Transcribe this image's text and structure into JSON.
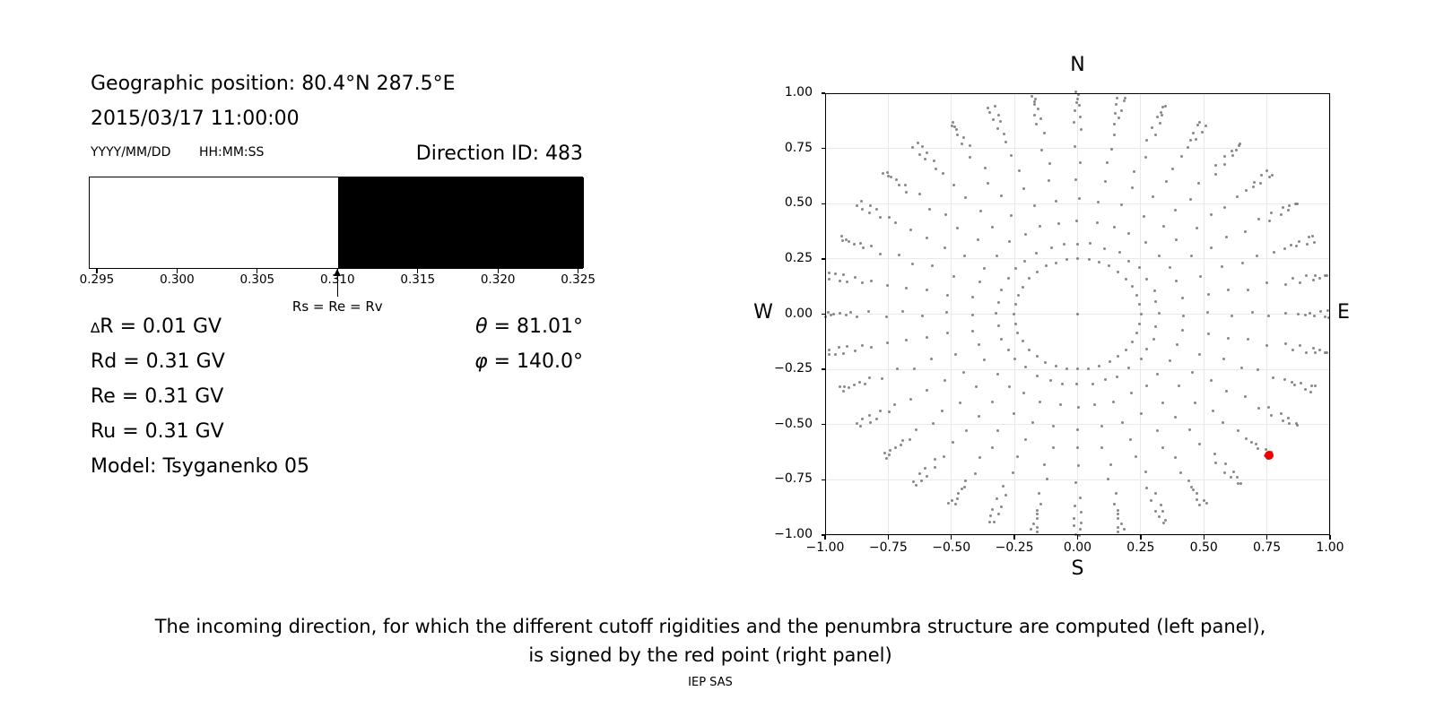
{
  "colors": {
    "dot_gray": "rgba(105,105,105,0.8)",
    "red_point": "#f00000",
    "grid": "#e9e9e9",
    "axis": "#000000",
    "penumbra_allowed": "#ffffff",
    "penumbra_forbidden": "#000000"
  },
  "left_panel": {
    "geo_position": "Geographic position: 80.4°N 287.5°E",
    "datetime": "2015/03/17 11:00:00",
    "date_format": "YYYY/MM/DD",
    "time_format": "HH:MM:SS",
    "direction_id": "Direction ID: 483",
    "info_rows": [
      {
        "sym": "∆",
        "text": "R = 0.01 GV"
      },
      {
        "sym": "",
        "text": "Rd = 0.31 GV"
      },
      {
        "sym": "",
        "text": "Re = 0.31 GV"
      },
      {
        "sym": "",
        "text": "Ru = 0.31 GV"
      },
      {
        "sym": "",
        "text": "Model: Tsyganenko 05"
      }
    ],
    "angle_rows": [
      {
        "sym": "θ",
        "text": " = 81.01°"
      },
      {
        "sym": "φ",
        "text": " = 140.0°"
      }
    ]
  },
  "right_panel": {
    "title": "N",
    "xlabel": "S",
    "ylabel_left": "W",
    "ylabel_right": "E"
  },
  "caption": {
    "line1": "The incoming direction, for which the different cutoff rigidities and the penumbra structure are computed (left panel),",
    "line2": "is signed by the red point (right panel)",
    "credit": "IEP SAS"
  },
  "chart_data": [
    {
      "type": "bar",
      "name": "penumbra-structure",
      "xlim": [
        0.2945,
        0.3253
      ],
      "xticks": [
        0.295,
        0.3,
        0.305,
        0.31,
        0.315,
        0.32,
        0.325
      ],
      "xtick_labels": [
        "0.295",
        "0.300",
        "0.305",
        "0.310",
        "0.315",
        "0.320",
        "0.325"
      ],
      "regions": [
        {
          "from": 0.2945,
          "to": 0.31,
          "color": "#ffffff",
          "meaning": "allowed rigidity band"
        },
        {
          "from": 0.31,
          "to": 0.3253,
          "color": "#000000",
          "meaning": "forbidden rigidity band"
        }
      ],
      "annotation": {
        "text": "Rs = Re = Rv",
        "x": 0.31
      },
      "values": {
        "Rs": 0.31,
        "Re": 0.31,
        "Rv": 0.31,
        "Rd": 0.31,
        "Ru": 0.31,
        "dR": 0.01,
        "unit": "GV"
      }
    },
    {
      "type": "scatter",
      "name": "incoming-directions",
      "title": "N",
      "xlabel": "S",
      "ylabel": "W",
      "ylabel_right": "E",
      "xlim": [
        -1,
        1
      ],
      "ylim": [
        -1,
        1
      ],
      "xticks": [
        -1.0,
        -0.75,
        -0.5,
        -0.25,
        0.0,
        0.25,
        0.5,
        0.75,
        1.0
      ],
      "xtick_labels": [
        "−1.00",
        "−0.75",
        "−0.50",
        "−0.25",
        "0.00",
        "0.25",
        "0.50",
        "0.75",
        "1.00"
      ],
      "yticks": [
        1.0,
        0.75,
        0.5,
        0.25,
        0.0,
        -0.25,
        -0.5,
        -0.75,
        -1.0
      ],
      "ytick_labels": [
        "1.00",
        "0.75",
        "0.50",
        "0.25",
        "0.00",
        "−0.25",
        "−0.50",
        "−0.75",
        "−1.00"
      ],
      "grid": true,
      "gray_directions": {
        "description": "direction grid: radial spokes of dots, radius = sin(zenith), azimuth every 10 degrees",
        "azimuth_start_deg": 0,
        "azimuth_step_deg": 10,
        "azimuth_count": 36,
        "radii": [
          0.25,
          0.32,
          0.42,
          0.52,
          0.61,
          0.69,
          0.76,
          0.83,
          0.87,
          0.898,
          0.921,
          0.942,
          0.96,
          0.977,
          0.993,
          1.0
        ],
        "include_center_dot": true,
        "marker_size_px": 3
      },
      "red_point": {
        "x": 0.76,
        "y": -0.64,
        "theta_deg": 81.01,
        "phi_deg": 140.0,
        "marker_size_px": 10
      }
    }
  ]
}
